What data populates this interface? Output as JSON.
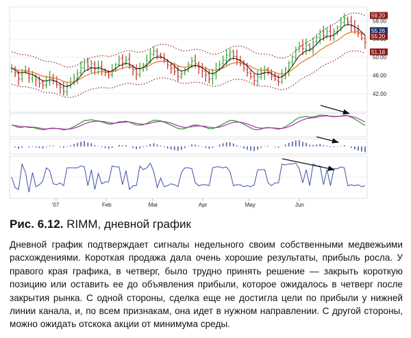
{
  "chart_data": {
    "type": "candlestick",
    "ticker": "RIMM",
    "price_axis": {
      "ticks": [
        "58.00",
        "54.00",
        "50.00",
        "46.00",
        "42.00"
      ],
      "tick_values": [
        58,
        54,
        50,
        46,
        42
      ],
      "range": [
        38.5,
        60.5
      ]
    },
    "price_tags": [
      {
        "text": "59.20",
        "value": 59.2,
        "color": "#8a1a1a"
      },
      {
        "text": "55.26",
        "value": 55.26,
        "color": "#1f2f6b"
      },
      {
        "text": "55.20",
        "value": 55.2,
        "color": "#8a1a1a"
      },
      {
        "text": "51.18",
        "value": 51.18,
        "color": "#8a1a1a"
      }
    ],
    "x_axis_labels": [
      "'07",
      "Feb",
      "Mar",
      "Apr",
      "May",
      "Jun"
    ],
    "x_axis_label_positions": [
      0.13,
      0.27,
      0.4,
      0.54,
      0.67,
      0.81
    ],
    "closes": [
      47.6,
      46.5,
      45.2,
      46.6,
      47.1,
      45.5,
      46.0,
      45.0,
      44.2,
      43.8,
      44.8,
      45.5,
      44.8,
      44.0,
      43.4,
      42.5,
      43.5,
      44.5,
      45.5,
      46.5,
      47.7,
      48.8,
      47.9,
      48.7,
      47.4,
      47.8,
      47.1,
      46.6,
      46.1,
      47.3,
      48.4,
      49.5,
      48.7,
      49.4,
      48.1,
      47.2,
      46.3,
      47.5,
      48.3,
      49.3,
      50.8,
      51.4,
      50.3,
      50.2,
      49.2,
      48.3,
      47.6,
      46.8,
      45.8,
      46.3,
      47.3,
      48.3,
      49.2,
      48.6,
      47.7,
      46.9,
      46.1,
      45.2,
      46.2,
      47.3,
      48.4,
      49.4,
      50.5,
      51.1,
      50.2,
      49.4,
      48.6,
      47.6,
      46.7,
      45.7,
      44.9,
      45.7,
      46.5,
      47.3,
      46.7,
      45.8,
      45.2,
      44.6,
      46.0,
      47.3,
      48.7,
      50.1,
      51.6,
      52.5,
      51.9,
      52.7,
      51.8,
      53.2,
      54.4,
      55.6,
      54.8,
      55.6,
      54.7,
      55.6,
      56.5,
      57.6,
      58.6,
      57.7,
      56.9,
      56.0,
      55.2,
      54.2,
      53.3
    ],
    "up_color": "#3ca63c",
    "down_color": "#c83232",
    "ema_fast_color": "#111111",
    "ema_slow_color": "#e8731e",
    "channel_color": "#8a1a1a",
    "macd_line_color": "#3c9a3c",
    "macd_signal_color": "#b03ab0",
    "histogram_color": "#4a5aa8",
    "force_index_color": "#3a4fa8",
    "divergence_arrow_color": "#111111"
  },
  "caption": {
    "figure_label": "Рис. 6.12.",
    "figure_title": "RIMM, дневной график"
  },
  "body_text": "Дневной график подтверждает сигналы недельного своим собственными медвежьими расхождениями. Короткая продажа дала очень хорошие результаты, прибыль росла. У правого края графика, в четверг, было трудно принять решение — закрыть короткую позицию или оставить ее до объявления прибыли, которое ожидалось в четверг после закрытия рынка. С одной стороны, сделка еще не достигла цели по прибыли у нижней линии канала, и, по всем признакам, она идет в нужном направлении. С другой стороны, можно ожидать отскока акции от минимума среды."
}
